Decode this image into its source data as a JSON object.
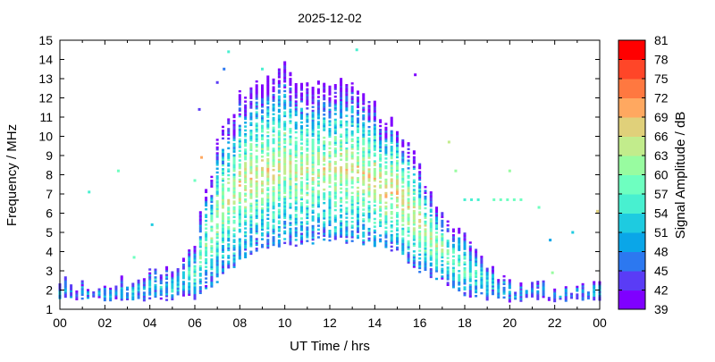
{
  "chart_data": {
    "type": "heatmap",
    "title": "2025-12-02",
    "xlabel": "UT Time / hrs",
    "ylabel": "Frequency / MHz",
    "colorbar_label": "Signal Amplitude / dB",
    "xlim": [
      0,
      24
    ],
    "ylim": [
      1,
      15
    ],
    "x_ticks": [
      "00",
      "02",
      "04",
      "06",
      "08",
      "10",
      "12",
      "14",
      "16",
      "18",
      "20",
      "22",
      "00"
    ],
    "y_ticks": [
      "1",
      "2",
      "3",
      "4",
      "5",
      "6",
      "7",
      "8",
      "9",
      "10",
      "11",
      "12",
      "13",
      "14",
      "15"
    ],
    "colorbar_ticks": [
      "39",
      "42",
      "45",
      "48",
      "51",
      "54",
      "57",
      "60",
      "63",
      "66",
      "69",
      "72",
      "75",
      "78",
      "81"
    ],
    "colorbar_colors": [
      "#7f00ff",
      "#5a3cf6",
      "#2c78f0",
      "#0aa6e8",
      "#1ecbe0",
      "#48f0d0",
      "#6effc0",
      "#98fca0",
      "#c2ec8c",
      "#e0d07a",
      "#ffa860",
      "#ff7840",
      "#ff4628",
      "#ff0000"
    ],
    "time_step_hours": 0.25,
    "envelope": {
      "hours": [
        0,
        1,
        2,
        3,
        4,
        5,
        6,
        7,
        8,
        9,
        10,
        11,
        12,
        13,
        14,
        15,
        16,
        17,
        18,
        19,
        20,
        21,
        22,
        23,
        24
      ],
      "fmin_mhz": [
        1.5,
        1.5,
        1.5,
        1.5,
        1.5,
        1.6,
        1.6,
        2.5,
        3.5,
        4.2,
        4.3,
        4.5,
        4.5,
        4.5,
        4.3,
        4.0,
        3.0,
        2.5,
        1.8,
        1.6,
        1.5,
        1.5,
        1.5,
        1.5,
        1.5
      ],
      "fmax_mhz": [
        2.5,
        2.2,
        2.2,
        2.3,
        3.0,
        3.0,
        4.5,
        9.5,
        12.0,
        12.8,
        13.8,
        12.5,
        12.8,
        12.8,
        11.5,
        10.5,
        8.5,
        6.0,
        5.0,
        3.5,
        2.3,
        2.2,
        2.0,
        2.1,
        2.2
      ],
      "peak_amplitude_db": [
        50,
        50,
        50,
        50,
        52,
        54,
        57,
        63,
        66,
        66,
        65,
        64,
        65,
        66,
        67,
        68,
        66,
        62,
        58,
        54,
        50,
        50,
        50,
        50,
        50
      ]
    },
    "isolated_points": [
      {
        "t": 7.5,
        "f": 14.4,
        "db": 54
      },
      {
        "t": 7.3,
        "f": 13.5,
        "db": 45
      },
      {
        "t": 7.0,
        "f": 12.8,
        "db": 42
      },
      {
        "t": 6.2,
        "f": 11.4,
        "db": 42
      },
      {
        "t": 9.0,
        "f": 13.5,
        "db": 54
      },
      {
        "t": 13.2,
        "f": 14.5,
        "db": 54
      },
      {
        "t": 15.8,
        "f": 13.2,
        "db": 40
      },
      {
        "t": 1.3,
        "f": 7.1,
        "db": 54
      },
      {
        "t": 2.6,
        "f": 8.2,
        "db": 57
      },
      {
        "t": 6.3,
        "f": 8.9,
        "db": 70
      },
      {
        "t": 6.0,
        "f": 7.7,
        "db": 57
      },
      {
        "t": 3.3,
        "f": 3.7,
        "db": 57
      },
      {
        "t": 4.1,
        "f": 5.4,
        "db": 51
      },
      {
        "t": 20.0,
        "f": 8.2,
        "db": 60
      },
      {
        "t": 21.3,
        "f": 6.3,
        "db": 57
      },
      {
        "t": 21.8,
        "f": 4.6,
        "db": 48
      },
      {
        "t": 22.8,
        "f": 5.0,
        "db": 51
      },
      {
        "t": 23.9,
        "f": 6.1,
        "db": 67
      },
      {
        "t": 21.9,
        "f": 2.9,
        "db": 62
      },
      {
        "t": 17.3,
        "f": 9.7,
        "db": 63
      },
      {
        "t": 17.6,
        "f": 8.2,
        "db": 62
      },
      {
        "t": 18.0,
        "f": 6.7,
        "db": 54
      },
      {
        "t": 18.3,
        "f": 6.7,
        "db": 54
      },
      {
        "t": 18.6,
        "f": 6.7,
        "db": 54
      },
      {
        "t": 19.3,
        "f": 6.7,
        "db": 57
      },
      {
        "t": 19.6,
        "f": 6.7,
        "db": 57
      },
      {
        "t": 19.9,
        "f": 6.7,
        "db": 57
      },
      {
        "t": 20.2,
        "f": 6.7,
        "db": 57
      },
      {
        "t": 20.5,
        "f": 6.7,
        "db": 57
      }
    ]
  }
}
